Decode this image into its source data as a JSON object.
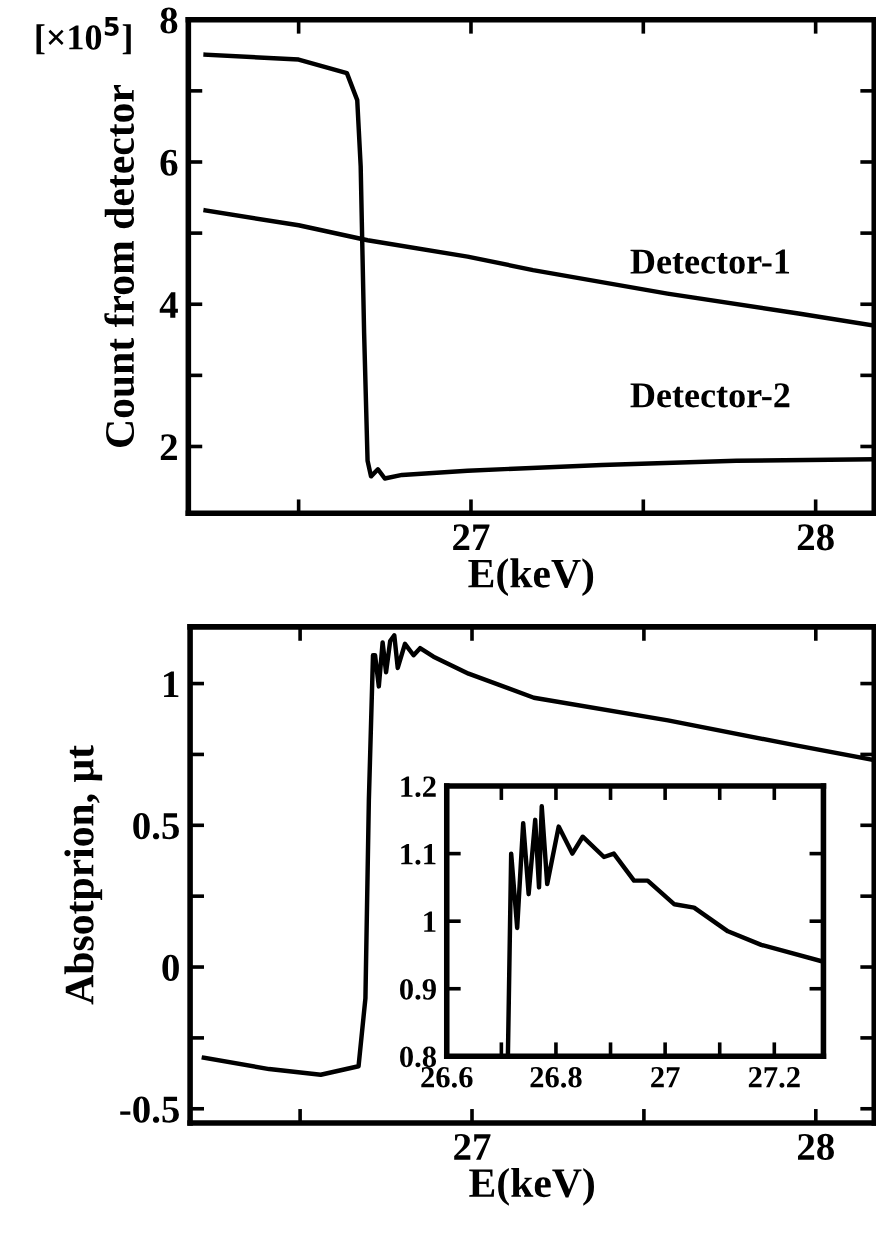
{
  "chart_data": [
    {
      "type": "line",
      "xlabel": "E(keV)",
      "ylabel": "Count from detector",
      "annotations": [
        "[×10$^{5}$]"
      ],
      "xlim": [
        26.18,
        28.17
      ],
      "ylim": [
        1.06,
        8
      ],
      "xticks": [
        {
          "value": 26.5,
          "label": null
        },
        27,
        {
          "value": 27.5,
          "label": null
        },
        28
      ],
      "yticks": [
        2,
        {
          "value": 3,
          "label": null
        },
        4,
        {
          "value": 5,
          "label": null
        },
        6,
        {
          "value": 7,
          "label": null
        },
        8
      ],
      "series": [
        {
          "name": "Detector-1",
          "color": "#000000",
          "x": [
            26.23,
            26.5,
            26.7,
            26.99,
            27.18,
            27.57,
            27.95,
            28.17
          ],
          "values": [
            5.32,
            5.11,
            4.9,
            4.67,
            4.48,
            4.15,
            3.87,
            3.7
          ]
        },
        {
          "name": "Detector-2",
          "color": "#000000",
          "x": [
            26.23,
            26.5,
            26.64,
            26.67,
            26.68,
            26.69,
            26.7,
            26.71,
            26.73,
            26.75,
            26.8,
            26.99,
            27.38,
            27.77,
            28.17
          ],
          "values": [
            7.51,
            7.44,
            7.25,
            6.87,
            5.94,
            3.59,
            1.8,
            1.58,
            1.68,
            1.55,
            1.6,
            1.66,
            1.74,
            1.8,
            1.82
          ]
        }
      ]
    },
    {
      "type": "line",
      "xlabel": "E(keV)",
      "ylabel": "Absotprion, μt",
      "xlim": [
        26.18,
        28.17
      ],
      "ylim": [
        -0.55,
        1.2
      ],
      "xticks": [
        {
          "value": 26.5,
          "label": null
        },
        27,
        {
          "value": 27.5,
          "label": null
        },
        28
      ],
      "yticks": [
        -0.5,
        {
          "value": -0.25,
          "label": null
        },
        0,
        {
          "value": 0.25,
          "label": null
        },
        0.5,
        {
          "value": 0.75,
          "label": null
        },
        1
      ],
      "series": [
        {
          "color": "#000000",
          "x": [
            26.22,
            26.41,
            26.56,
            26.67,
            26.69,
            26.7,
            26.712,
            26.718,
            26.729,
            26.74,
            26.75,
            26.762,
            26.774,
            26.784,
            26.805,
            26.83,
            26.849,
            26.888,
            26.99,
            27.18,
            27.57,
            27.95,
            28.17
          ],
          "values": [
            -0.32,
            -0.36,
            -0.38,
            -0.35,
            -0.11,
            0.59,
            1.1,
            1.1,
            0.99,
            1.145,
            1.04,
            1.15,
            1.17,
            1.055,
            1.14,
            1.1,
            1.125,
            1.095,
            1.035,
            0.95,
            0.87,
            0.78,
            0.73
          ]
        }
      ]
    },
    {
      "type": "line",
      "xlim": [
        26.6,
        27.29
      ],
      "ylim": [
        0.8,
        1.2
      ],
      "xticks": [
        26.6,
        {
          "value": 26.7,
          "label": null
        },
        26.8,
        {
          "value": 26.9,
          "label": null
        },
        27,
        {
          "value": 27.1,
          "label": null
        },
        27.2
      ],
      "yticks": [
        0.8,
        0.9,
        1,
        1.1,
        1.2
      ],
      "series": [
        {
          "color": "#000000",
          "x": [
            26.712,
            26.718,
            26.729,
            26.74,
            26.75,
            26.762,
            26.769,
            26.774,
            26.784,
            26.805,
            26.83,
            26.849,
            26.888,
            26.906,
            26.943,
            26.968,
            27.017,
            27.053,
            27.115,
            27.176,
            27.29
          ],
          "values": [
            0.8,
            1.1,
            0.99,
            1.145,
            1.04,
            1.15,
            1.05,
            1.17,
            1.055,
            1.14,
            1.1,
            1.125,
            1.095,
            1.1,
            1.06,
            1.06,
            1.025,
            1.02,
            0.985,
            0.965,
            0.94
          ]
        }
      ]
    }
  ]
}
